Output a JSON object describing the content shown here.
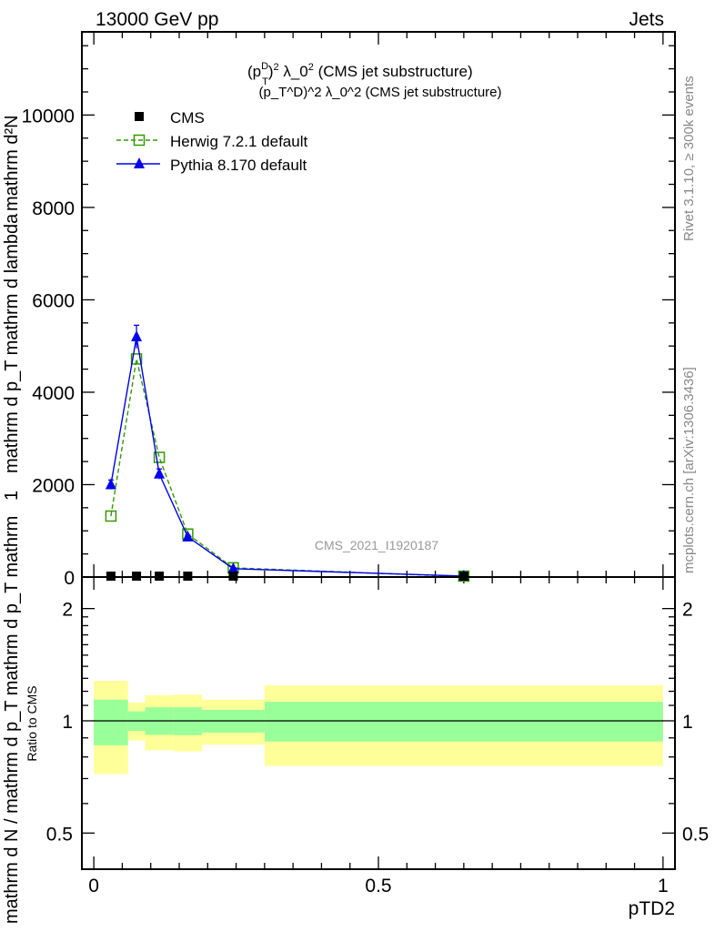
{
  "header": {
    "left": "13000 GeV pp",
    "right": "Jets"
  },
  "side_text": {
    "rivet": "Rivet 3.1.10, ≥ 300k events",
    "mcplots": "mcplots.cern.ch [arXiv:1306.3436]"
  },
  "watermark": "CMS_2021_I1920187",
  "chart_data": [
    {
      "type": "line",
      "title": "(p_T^D)^2 λ_0^2 (CMS jet substructure)",
      "title_parts": {
        "p": "(p",
        "sub": "T",
        "sup": "D",
        "close": ")",
        "sq": "2",
        "mid": " λ_0",
        "sq2": "2",
        "rest": " (CMS jet substructure)"
      },
      "ylabel_parts": {
        "one": "1",
        "den1": "mathrm d N / mathrm d p_T mathrm d p_T mathrm",
        "num2": "mathrm d²N",
        "den2": "mathrm d p_T mathrm d lambda"
      },
      "xlim": [
        -0.021,
        1.021
      ],
      "ylim": [
        0,
        11800
      ],
      "yticks": [
        0,
        2000,
        4000,
        6000,
        8000,
        10000
      ],
      "ytick_labels": [
        "0",
        "2000",
        "4000",
        "6000",
        "8000",
        "10000"
      ],
      "legend_position": "top-left",
      "x": [
        0.03,
        0.075,
        0.115,
        0.165,
        0.245,
        0.65
      ],
      "series": [
        {
          "name": "CMS",
          "color": "#000000",
          "marker": "filled-square",
          "values": [
            10,
            10,
            10,
            10,
            10,
            5
          ]
        },
        {
          "name": "Herwig 7.2.1 default",
          "color": "#339900",
          "marker": "open-square",
          "dashed": true,
          "values": [
            1320,
            4720,
            2590,
            930,
            200,
            10
          ]
        },
        {
          "name": "Pythia 8.170 default",
          "color": "#0000ee",
          "marker": "filled-triangle",
          "values": [
            2000,
            5200,
            2230,
            870,
            180,
            20
          ],
          "errors": [
            100,
            250,
            110,
            40,
            15,
            5
          ]
        }
      ]
    },
    {
      "type": "area",
      "ylabel": "Ratio to CMS",
      "xlabel": "pTD2",
      "xlim": [
        -0.021,
        1.021
      ],
      "ylim": [
        0.4,
        2.43
      ],
      "yscale": "log",
      "yticks": [
        0.5,
        1,
        2
      ],
      "ytick_labels": [
        "0.5",
        "1",
        "2"
      ],
      "xticks": [
        0,
        0.5,
        1
      ],
      "xtick_labels": [
        "0",
        "0.5",
        "1"
      ],
      "bin_edges": [
        0,
        0.06,
        0.09,
        0.14,
        0.19,
        0.3,
        1.0
      ],
      "stat_band": {
        "color": "#99ff99",
        "low": [
          0.86,
          0.94,
          0.917,
          0.915,
          0.93,
          0.88
        ],
        "high": [
          1.14,
          1.06,
          1.087,
          1.087,
          1.07,
          1.124
        ]
      },
      "total_band": {
        "color": "#ffff99",
        "low": [
          0.72,
          0.886,
          0.834,
          0.828,
          0.863,
          0.757
        ],
        "high": [
          1.28,
          1.12,
          1.17,
          1.175,
          1.14,
          1.245
        ]
      },
      "reference": 1
    }
  ]
}
